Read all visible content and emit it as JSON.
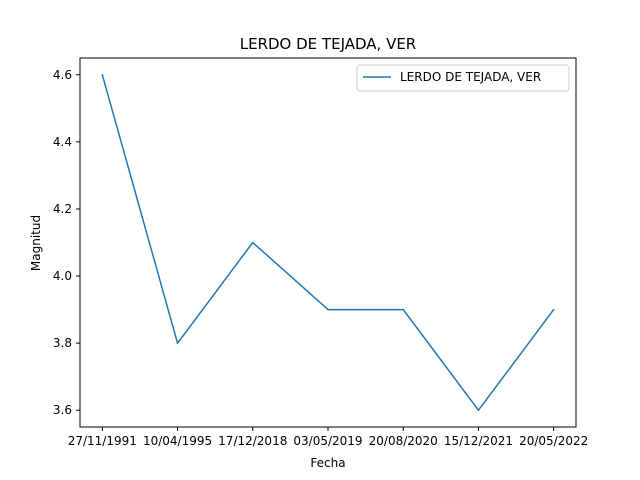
{
  "chart_data": {
    "type": "line",
    "title": "LERDO DE TEJADA, VER",
    "xlabel": "Fecha",
    "ylabel": "Magnitud",
    "categories": [
      "27/11/1991",
      "10/04/1995",
      "17/12/2018",
      "03/05/2019",
      "20/08/2020",
      "15/12/2021",
      "20/05/2022"
    ],
    "series": [
      {
        "name": "LERDO DE TEJADA, VER",
        "values": [
          4.6,
          3.8,
          4.1,
          3.9,
          3.9,
          3.6,
          3.9
        ],
        "color": "#1f77b4"
      }
    ],
    "ylim": [
      3.55,
      4.65
    ],
    "yticks": [
      "3.6",
      "3.8",
      "4.0",
      "4.2",
      "4.4",
      "4.6"
    ],
    "grid": false,
    "legend_position": "upper right"
  }
}
